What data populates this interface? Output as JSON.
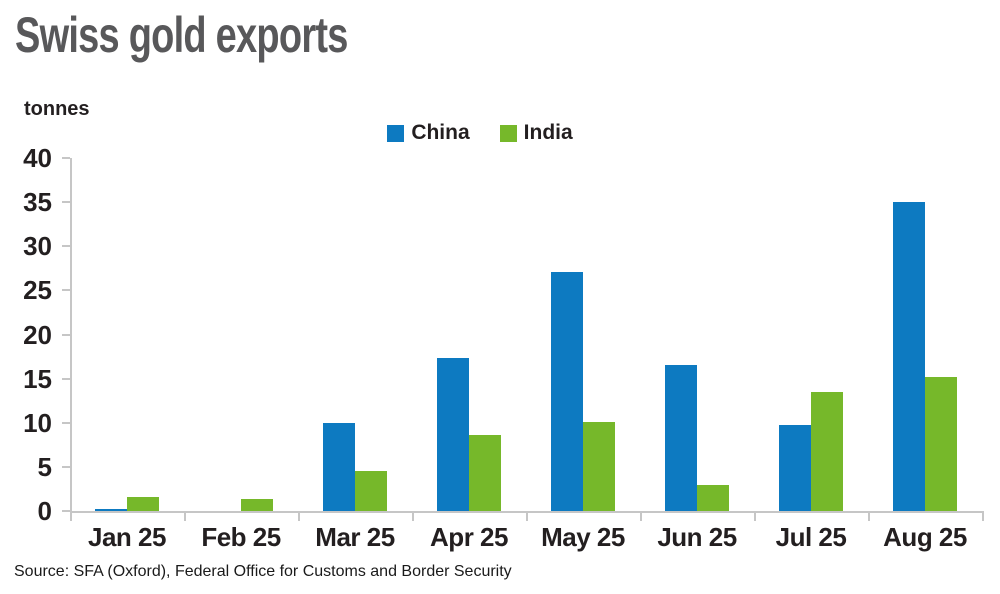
{
  "source_note": "Source: SFA (Oxford), Federal Office for Customs and Border Security",
  "chart_data": {
    "type": "bar",
    "title": "Swiss gold exports",
    "ylabel": "tonnes",
    "xlabel": "",
    "categories": [
      "Jan 25",
      "Feb 25",
      "Mar 25",
      "Apr 25",
      "May 25",
      "Jun 25",
      "Jul 25",
      "Aug 25"
    ],
    "series": [
      {
        "name": "China",
        "color": "#0d7ac1",
        "values": [
          0.2,
          0,
          10.0,
          17.3,
          27.1,
          16.6,
          9.8,
          35.0
        ]
      },
      {
        "name": "India",
        "color": "#76b82a",
        "values": [
          1.6,
          1.4,
          4.5,
          8.6,
          10.1,
          2.9,
          13.5,
          15.2
        ]
      }
    ],
    "ylim": [
      0,
      40
    ],
    "yticks": [
      0,
      5,
      10,
      15,
      20,
      25,
      30,
      35,
      40
    ],
    "grid": false,
    "legend_position": "top-center",
    "axis_color": "#c6c6c6",
    "title_color": "#58585a",
    "text_color": "#231f20"
  }
}
